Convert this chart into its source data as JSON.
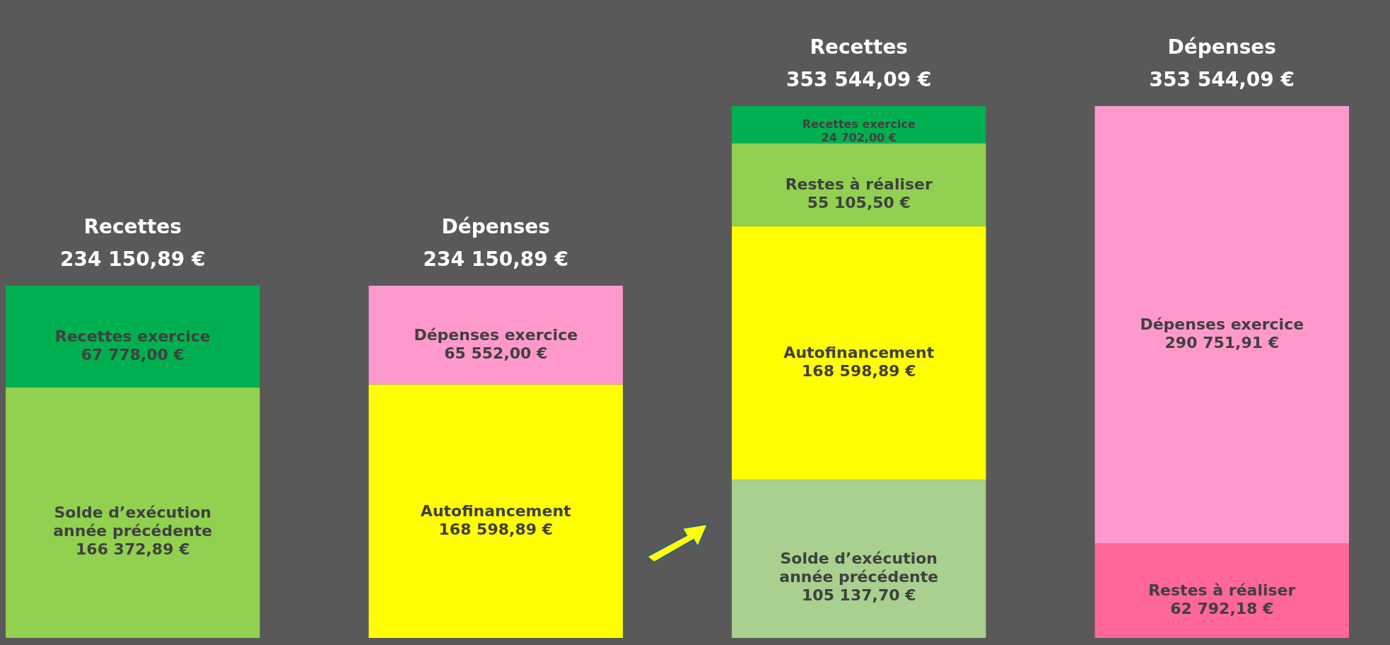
{
  "chart_data": {
    "type": "bar",
    "stacked": true,
    "data_labels": false,
    "categories": [
      "Recettes",
      "Dépenses",
      "Recettes",
      "Dépenses"
    ],
    "totals": [
      "234 150,89 €",
      "234 150,89 €",
      "353 544,09 €",
      "353 544,09 €"
    ],
    "series": [
      {
        "name": "Solde d’exécution année précédente",
        "colors": [
          "#92d050",
          null,
          "#a9d08e",
          null
        ],
        "values": [
          166372.89,
          null,
          105137.7,
          null
        ],
        "value_labels": [
          "166 372,89 €",
          null,
          "105 137,70 €",
          null
        ]
      },
      {
        "name": "Autofinancement",
        "color": "#ffff00",
        "values": [
          null,
          168598.89,
          168598.89,
          null
        ],
        "value_labels": [
          null,
          "168 598,89 €",
          "168 598,89 €",
          null
        ]
      },
      {
        "name": "Restes à réaliser",
        "colors": [
          null,
          null,
          "#92d050",
          "#ff6699"
        ],
        "values": [
          null,
          null,
          55105.5,
          62792.18
        ],
        "value_labels": [
          null,
          null,
          "55 105,50 €",
          "62 792,18 €"
        ]
      },
      {
        "name": "Recettes exercice",
        "color": "#00b050",
        "values": [
          67778.0,
          null,
          24702.0,
          null
        ],
        "value_labels": [
          "67 778,00 €",
          null,
          "24 702,00 €",
          null
        ]
      },
      {
        "name": "Dépenses exercice",
        "color": "#ff99cc",
        "values": [
          null,
          65552.0,
          null,
          290751.91
        ],
        "value_labels": [
          null,
          "65 552,00 €",
          null,
          "290 751,91 €"
        ]
      }
    ]
  }
}
